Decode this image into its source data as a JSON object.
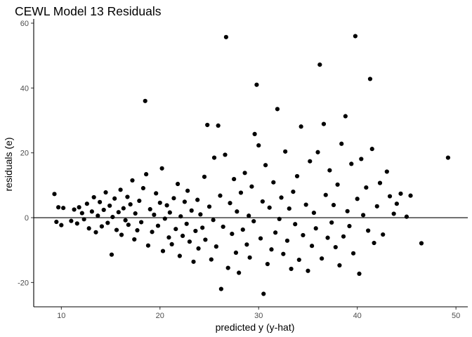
{
  "chart_data": {
    "type": "scatter",
    "title": "CEWL Model 13 Residuals",
    "xlabel": "predicted y (y-hat)",
    "ylabel": "residuals (e)",
    "xlim": [
      7.2,
      51.2
    ],
    "ylim": [
      -27.5,
      60
    ],
    "xticks": [
      10,
      20,
      30,
      40,
      50
    ],
    "yticks": [
      -20,
      0,
      20,
      40,
      60
    ],
    "grid": false,
    "reference_line_y": 0,
    "point_color": "#000000",
    "points": [
      [
        9.3,
        7.3
      ],
      [
        9.5,
        -1.3
      ],
      [
        9.7,
        3.2
      ],
      [
        10.0,
        -2.3
      ],
      [
        10.2,
        3.0
      ],
      [
        11.0,
        -1.0
      ],
      [
        11.3,
        2.5
      ],
      [
        11.6,
        -1.8
      ],
      [
        11.8,
        3.2
      ],
      [
        12.1,
        1.4
      ],
      [
        12.3,
        -0.5
      ],
      [
        12.6,
        4.3
      ],
      [
        12.8,
        -3.3
      ],
      [
        13.1,
        1.9
      ],
      [
        13.3,
        6.3
      ],
      [
        13.5,
        -4.5
      ],
      [
        13.7,
        0.6
      ],
      [
        13.9,
        4.8
      ],
      [
        14.1,
        -2.7
      ],
      [
        14.3,
        2.4
      ],
      [
        14.5,
        7.8
      ],
      [
        14.7,
        -1.6
      ],
      [
        14.9,
        3.7
      ],
      [
        15.1,
        -11.4
      ],
      [
        15.2,
        0.2
      ],
      [
        15.4,
        5.9
      ],
      [
        15.6,
        -3.8
      ],
      [
        15.8,
        1.7
      ],
      [
        16.0,
        8.6
      ],
      [
        16.1,
        -5.3
      ],
      [
        16.3,
        2.9
      ],
      [
        16.5,
        -0.8
      ],
      [
        16.7,
        6.4
      ],
      [
        16.8,
        -2.2
      ],
      [
        17.0,
        4.1
      ],
      [
        17.2,
        11.5
      ],
      [
        17.4,
        -6.7
      ],
      [
        17.5,
        1.3
      ],
      [
        17.7,
        -3.9
      ],
      [
        17.9,
        5.2
      ],
      [
        18.1,
        -1.4
      ],
      [
        18.3,
        9.1
      ],
      [
        18.5,
        36.0
      ],
      [
        18.6,
        13.4
      ],
      [
        18.8,
        -8.6
      ],
      [
        19.0,
        2.6
      ],
      [
        19.2,
        -4.4
      ],
      [
        19.4,
        0.9
      ],
      [
        19.6,
        7.5
      ],
      [
        19.8,
        -2.5
      ],
      [
        20.0,
        4.6
      ],
      [
        20.2,
        15.2
      ],
      [
        20.3,
        -10.3
      ],
      [
        20.5,
        -0.3
      ],
      [
        20.7,
        3.8
      ],
      [
        20.9,
        -6.1
      ],
      [
        21.0,
        1.6
      ],
      [
        21.2,
        -8.2
      ],
      [
        21.4,
        6.0
      ],
      [
        21.6,
        -3.5
      ],
      [
        21.8,
        10.4
      ],
      [
        22.0,
        -11.8
      ],
      [
        22.1,
        0.4
      ],
      [
        22.3,
        -5.6
      ],
      [
        22.5,
        4.9
      ],
      [
        22.7,
        -1.9
      ],
      [
        22.8,
        8.3
      ],
      [
        23.0,
        -7.4
      ],
      [
        23.2,
        2.2
      ],
      [
        23.4,
        -13.6
      ],
      [
        23.6,
        -4.1
      ],
      [
        23.8,
        5.5
      ],
      [
        23.9,
        -9.5
      ],
      [
        24.1,
        1.0
      ],
      [
        24.3,
        -3.1
      ],
      [
        24.5,
        12.6
      ],
      [
        24.6,
        -6.8
      ],
      [
        24.8,
        28.6
      ],
      [
        25.0,
        3.4
      ],
      [
        25.2,
        -12.9
      ],
      [
        25.4,
        -0.7
      ],
      [
        25.5,
        18.5
      ],
      [
        25.7,
        -8.9
      ],
      [
        25.9,
        28.4
      ],
      [
        26.1,
        6.8
      ],
      [
        26.2,
        -22.0
      ],
      [
        26.4,
        -2.8
      ],
      [
        26.6,
        19.4
      ],
      [
        26.7,
        55.7
      ],
      [
        26.9,
        -15.5
      ],
      [
        27.1,
        4.5
      ],
      [
        27.3,
        -5.0
      ],
      [
        27.5,
        11.9
      ],
      [
        27.7,
        -10.8
      ],
      [
        27.8,
        1.9
      ],
      [
        28.0,
        -17.0
      ],
      [
        28.2,
        7.7
      ],
      [
        28.4,
        -3.7
      ],
      [
        28.6,
        13.8
      ],
      [
        28.8,
        -8.3
      ],
      [
        29.0,
        0.6
      ],
      [
        29.1,
        -12.3
      ],
      [
        29.3,
        9.6
      ],
      [
        29.5,
        -1.1
      ],
      [
        29.6,
        25.8
      ],
      [
        29.8,
        41.0
      ],
      [
        30.0,
        22.3
      ],
      [
        30.2,
        -6.4
      ],
      [
        30.4,
        5.0
      ],
      [
        30.5,
        -23.5
      ],
      [
        30.7,
        16.2
      ],
      [
        30.9,
        -14.3
      ],
      [
        31.1,
        3.1
      ],
      [
        31.3,
        -9.8
      ],
      [
        31.5,
        10.9
      ],
      [
        31.7,
        -4.6
      ],
      [
        31.9,
        33.5
      ],
      [
        32.1,
        -0.4
      ],
      [
        32.3,
        6.2
      ],
      [
        32.5,
        -11.2
      ],
      [
        32.7,
        20.4
      ],
      [
        32.9,
        -7.1
      ],
      [
        33.1,
        2.8
      ],
      [
        33.3,
        -15.8
      ],
      [
        33.5,
        8.0
      ],
      [
        33.7,
        -2.0
      ],
      [
        33.9,
        12.8
      ],
      [
        34.1,
        -13.0
      ],
      [
        34.3,
        28.1
      ],
      [
        34.5,
        -5.4
      ],
      [
        34.8,
        4.0
      ],
      [
        35.0,
        -16.4
      ],
      [
        35.2,
        17.4
      ],
      [
        35.4,
        -8.7
      ],
      [
        35.6,
        1.5
      ],
      [
        35.8,
        -3.3
      ],
      [
        36.0,
        20.2
      ],
      [
        36.2,
        47.2
      ],
      [
        36.4,
        -12.6
      ],
      [
        36.6,
        28.9
      ],
      [
        36.8,
        7.0
      ],
      [
        37.0,
        -6.2
      ],
      [
        37.2,
        14.6
      ],
      [
        37.4,
        -1.5
      ],
      [
        37.6,
        3.9
      ],
      [
        37.8,
        -9.1
      ],
      [
        38.0,
        10.2
      ],
      [
        38.2,
        -14.7
      ],
      [
        38.4,
        22.8
      ],
      [
        38.6,
        -5.8
      ],
      [
        38.8,
        31.3
      ],
      [
        39.0,
        2.0
      ],
      [
        39.2,
        -2.6
      ],
      [
        39.4,
        16.6
      ],
      [
        39.6,
        -11.0
      ],
      [
        39.8,
        56.0
      ],
      [
        40.0,
        5.8
      ],
      [
        40.2,
        -17.3
      ],
      [
        40.4,
        18.1
      ],
      [
        40.6,
        0.8
      ],
      [
        40.9,
        9.3
      ],
      [
        41.1,
        -4.0
      ],
      [
        41.3,
        42.8
      ],
      [
        41.5,
        21.2
      ],
      [
        41.7,
        -7.8
      ],
      [
        42.0,
        3.5
      ],
      [
        42.3,
        10.7
      ],
      [
        42.6,
        -5.2
      ],
      [
        43.0,
        14.2
      ],
      [
        43.3,
        6.6
      ],
      [
        43.7,
        1.2
      ],
      [
        44.0,
        4.3
      ],
      [
        44.4,
        7.4
      ],
      [
        45.0,
        0.3
      ],
      [
        45.4,
        6.8
      ],
      [
        46.5,
        -7.9
      ],
      [
        49.2,
        18.5
      ]
    ]
  }
}
